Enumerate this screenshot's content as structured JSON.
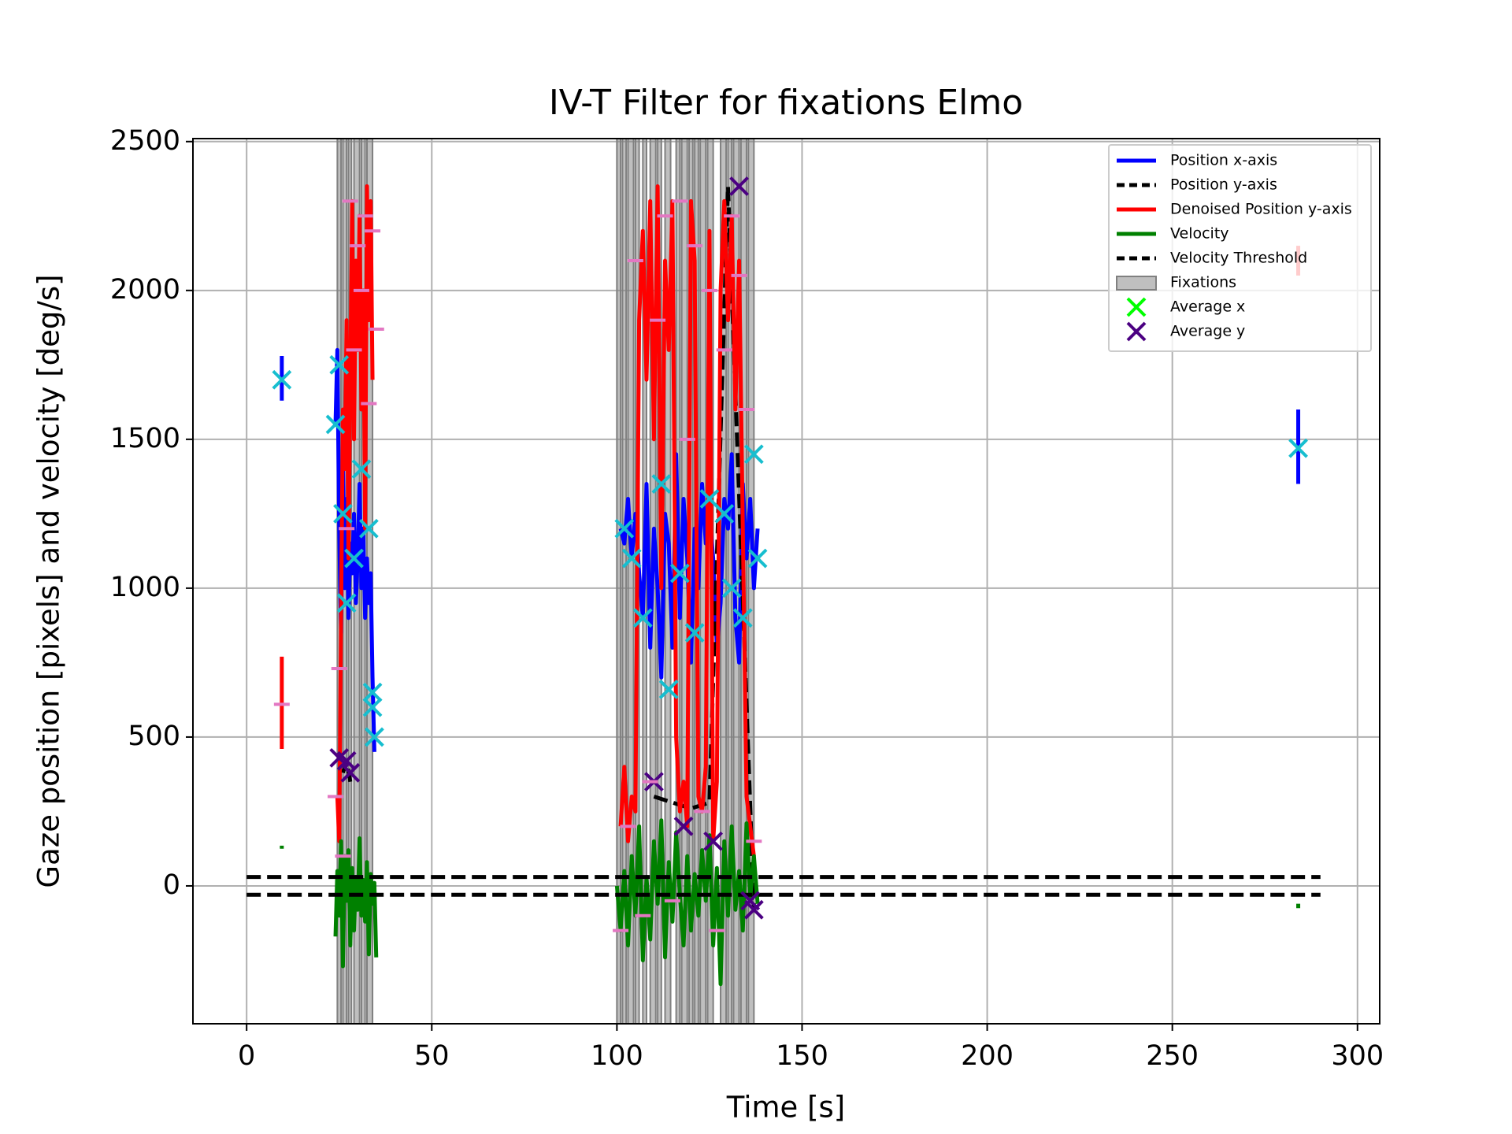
{
  "chart_data": {
    "type": "line",
    "title": "IV-T Filter for fixations Elmo",
    "xlabel": "Time [s]",
    "ylabel": "Gaze position [pixels] and velocity [deg/s]",
    "xlim": [
      -14.5,
      306
    ],
    "ylim": [
      -463,
      2510
    ],
    "xticks": [
      0,
      50,
      100,
      150,
      200,
      250,
      300
    ],
    "yticks": [
      0,
      500,
      1000,
      1500,
      2000,
      2500
    ],
    "grid": true,
    "legend": "upper right",
    "series": [
      {
        "name": "Position x-axis",
        "color": "#0000ff",
        "style": "solid",
        "x": [
          9.5,
          9.5,
          null,
          24,
          24.5,
          25,
          25.5,
          26,
          26.5,
          27,
          27.5,
          28,
          28.5,
          29,
          29.5,
          30,
          30.5,
          31,
          31.5,
          32,
          32.5,
          33,
          33.5,
          34,
          34.5,
          null,
          101,
          102,
          103,
          104,
          105,
          106,
          107,
          108,
          109,
          110,
          111,
          112,
          113,
          114,
          115,
          116,
          117,
          118,
          119,
          120,
          121,
          122,
          123,
          124,
          125,
          126,
          127,
          128,
          129,
          130,
          131,
          132,
          133,
          134,
          135,
          136,
          137,
          138,
          null,
          284,
          284
        ],
        "values": [
          1630,
          1780,
          null,
          1550,
          1800,
          1200,
          850,
          1450,
          1000,
          1300,
          900,
          1150,
          1050,
          1250,
          950,
          1100,
          1350,
          1000,
          1200,
          900,
          1100,
          950,
          1050,
          700,
          450,
          null,
          1200,
          1150,
          1300,
          1100,
          1250,
          1050,
          900,
          1350,
          800,
          1200,
          1000,
          700,
          1250,
          1150,
          800,
          1450,
          900,
          1300,
          1100,
          750,
          1200,
          1000,
          1350,
          1150,
          1250,
          1100,
          800,
          950,
          1300,
          1200,
          1450,
          900,
          750,
          1350,
          1100,
          1300,
          1000,
          1200,
          null,
          1350,
          1600
        ]
      },
      {
        "name": "Position y-axis",
        "color": "#000000",
        "style": "dashed",
        "x": [
          26,
          27,
          28,
          null,
          110,
          120,
          125,
          130,
          137
        ],
        "values": [
          380,
          420,
          350,
          null,
          300,
          260,
          280,
          2350,
          -80
        ]
      },
      {
        "name": "Denoised Position y-axis",
        "color": "#ff0000",
        "style": "solid",
        "x": [
          9.5,
          9.5,
          null,
          24.5,
          25,
          25.5,
          26,
          26.5,
          27,
          27.5,
          28,
          28.5,
          29,
          29.5,
          30,
          30.5,
          31,
          31.5,
          32,
          32.5,
          33,
          33.5,
          34,
          null,
          101,
          102,
          103,
          104,
          105,
          106,
          107,
          108,
          109,
          110,
          111,
          112,
          113,
          114,
          115,
          116,
          117,
          118,
          119,
          120,
          121,
          122,
          123,
          124,
          125,
          126,
          127,
          128,
          129,
          130,
          131,
          132,
          133,
          134,
          135,
          136,
          137,
          null,
          284,
          284
        ],
        "values": [
          460,
          770,
          null,
          300,
          150,
          900,
          1600,
          1400,
          1900,
          1100,
          1700,
          2300,
          1500,
          2100,
          1800,
          2250,
          1600,
          2000,
          1200,
          2350,
          1900,
          2300,
          1700,
          null,
          200,
          400,
          150,
          300,
          250,
          1900,
          2200,
          1700,
          2300,
          1500,
          2350,
          1000,
          2100,
          1800,
          2300,
          500,
          250,
          350,
          200,
          2300,
          2100,
          300,
          250,
          400,
          2200,
          150,
          350,
          2000,
          2300,
          1900,
          2250,
          1600,
          2100,
          1200,
          300,
          200,
          100,
          null,
          2050,
          2150
        ]
      },
      {
        "name": "Velocity",
        "color": "#008000",
        "style": "solid",
        "x": [
          9.5,
          9.5,
          null,
          24,
          24.5,
          25,
          25.5,
          26,
          26.5,
          27,
          27.5,
          28,
          28.5,
          29,
          29.5,
          30,
          30.5,
          31,
          31.5,
          32,
          32.5,
          33,
          33.5,
          34,
          34.5,
          35,
          null,
          100,
          101,
          102,
          103,
          104,
          105,
          106,
          107,
          108,
          109,
          110,
          111,
          112,
          113,
          114,
          115,
          116,
          117,
          118,
          119,
          120,
          121,
          122,
          123,
          124,
          125,
          126,
          127,
          128,
          129,
          130,
          131,
          132,
          133,
          134,
          135,
          136,
          137,
          138,
          null,
          284,
          284
        ],
        "values": [
          125,
          135,
          null,
          -170,
          50,
          -100,
          150,
          -270,
          100,
          -50,
          120,
          -200,
          60,
          -150,
          30,
          -80,
          160,
          -100,
          20,
          -120,
          80,
          -230,
          40,
          -60,
          10,
          -240,
          null,
          0,
          -150,
          50,
          -200,
          100,
          -100,
          200,
          -250,
          30,
          -180,
          150,
          -60,
          220,
          -240,
          80,
          -120,
          180,
          -30,
          -200,
          100,
          -150,
          40,
          -100,
          120,
          -50,
          170,
          -200,
          60,
          -330,
          150,
          -100,
          200,
          -80,
          50,
          -150,
          210,
          -40,
          100,
          -60,
          null,
          -60,
          -75
        ]
      },
      {
        "name": "Velocity Threshold",
        "color": "#000000",
        "style": "dashed",
        "x": [
          0,
          290,
          null,
          0,
          290
        ],
        "values": [
          30,
          30,
          null,
          -30,
          -30
        ]
      },
      {
        "name": "Fixations",
        "color": "#808080",
        "spans": [
          [
            24.5,
            25.5
          ],
          [
            26,
            27
          ],
          [
            27.5,
            28.3
          ],
          [
            29,
            30.5
          ],
          [
            31,
            32
          ],
          [
            32.5,
            34
          ],
          [
            100,
            101
          ],
          [
            101.5,
            102.5
          ],
          [
            103,
            104.5
          ],
          [
            105,
            106
          ],
          [
            107,
            108
          ],
          [
            109,
            110.5
          ],
          [
            111,
            112
          ],
          [
            113,
            114.5
          ],
          [
            116,
            117
          ],
          [
            117.5,
            119
          ],
          [
            119.5,
            120.5
          ],
          [
            121,
            122
          ],
          [
            122.5,
            124
          ],
          [
            124.5,
            126
          ],
          [
            128,
            129.5
          ],
          [
            130,
            131
          ],
          [
            131.5,
            133
          ],
          [
            133.5,
            135
          ],
          [
            135.5,
            137
          ]
        ]
      },
      {
        "name": "Average x",
        "color": "#00ff00",
        "marker": "x",
        "x": [],
        "values": []
      },
      {
        "name": "Average y",
        "color": "#4b0082",
        "marker": "x",
        "x": [
          25,
          27,
          28,
          110,
          118,
          126,
          133,
          136,
          137
        ],
        "values": [
          430,
          420,
          380,
          350,
          200,
          150,
          2350,
          -50,
          -80
        ]
      },
      {
        "color": "#17becf",
        "marker": "x",
        "x": [
          9.5,
          24,
          25,
          26,
          27,
          29,
          31,
          33,
          34,
          34.5,
          34,
          102,
          104,
          107,
          112,
          114,
          117,
          121,
          125,
          129,
          131,
          134,
          137,
          138,
          284
        ],
        "values": [
          1700,
          1550,
          1750,
          1250,
          950,
          1100,
          1400,
          1200,
          600,
          500,
          650,
          1200,
          1100,
          900,
          1350,
          660,
          1050,
          850,
          1300,
          1250,
          1000,
          900,
          1450,
          1100,
          1470
        ]
      },
      {
        "color": "#e377c2",
        "marker": "_",
        "x": [
          9.5,
          24,
          25,
          26,
          27,
          28,
          29,
          30,
          31,
          32,
          33,
          34,
          35,
          101,
          103,
          105,
          107,
          109,
          111,
          113,
          115,
          117,
          119,
          121,
          123,
          125,
          127,
          129,
          131,
          133,
          135,
          137
        ],
        "values": [
          610,
          300,
          730,
          100,
          1200,
          2300,
          1800,
          2150,
          2000,
          2250,
          1620,
          2200,
          1870,
          -150,
          200,
          2100,
          -100,
          350,
          1900,
          2250,
          -50,
          2300,
          1500,
          2150,
          250,
          2000,
          -150,
          1800,
          2250,
          2050,
          1600,
          150
        ]
      }
    ]
  }
}
